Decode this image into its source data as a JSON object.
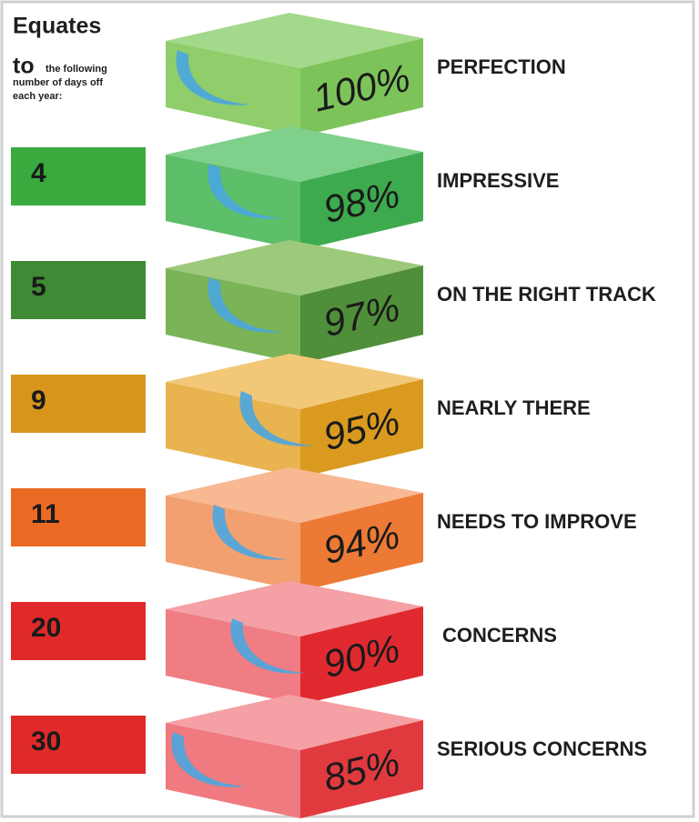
{
  "header": {
    "title": "Equates",
    "to": "to",
    "note": [
      "the following",
      "number of days off",
      "each year:"
    ]
  },
  "rows": [
    {
      "percent": "100%",
      "label": "PERFECTION"
    },
    {
      "days": "4",
      "percent": "98%",
      "label": "IMPRESSIVE"
    },
    {
      "days": "5",
      "percent": "97%",
      "label": "ON THE RIGHT TRACK"
    },
    {
      "days": "9",
      "percent": "95%",
      "label": "NEARLY THERE"
    },
    {
      "days": "11",
      "percent": "94%",
      "label": "NEEDS TO IMPROVE"
    },
    {
      "days": "20",
      "percent": "90%",
      "label": "CONCERNS"
    },
    {
      "days": "30",
      "percent": "85%",
      "label": "SERIOUS CONCERNS"
    }
  ]
}
